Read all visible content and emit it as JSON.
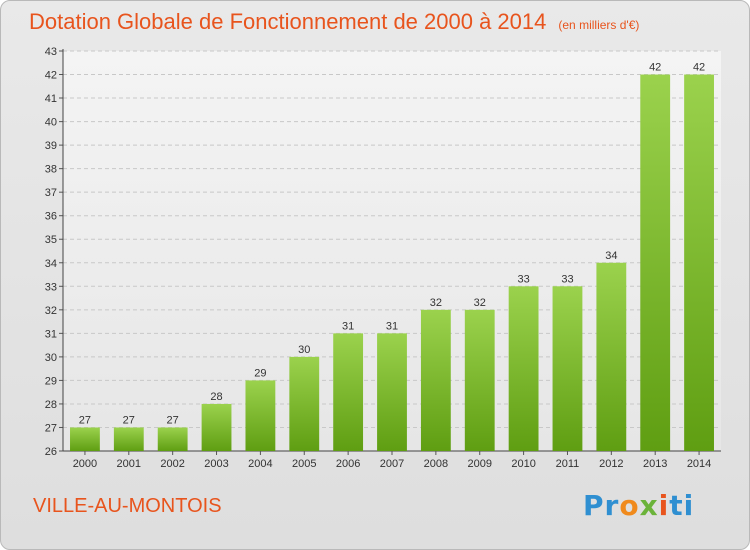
{
  "header": {
    "title": "Dotation Globale de Fonctionnement de 2000 à 2014",
    "unit": "(en milliers d'€)"
  },
  "footer": {
    "commune": "VILLE-AU-MONTOIS",
    "logo": [
      "P",
      "r",
      "o",
      "x",
      "i",
      "ti"
    ]
  },
  "colors": {
    "accent": "#e8541d",
    "bar_light": "#9bd24d",
    "bar_dark": "#5f9e12",
    "grid": "#c8c8c8"
  },
  "chart_data": {
    "type": "bar",
    "categories": [
      "2000",
      "2001",
      "2002",
      "2003",
      "2004",
      "2005",
      "2006",
      "2007",
      "2008",
      "2009",
      "2010",
      "2011",
      "2012",
      "2013",
      "2014"
    ],
    "values": [
      27,
      27,
      27,
      28,
      29,
      30,
      31,
      31,
      32,
      32,
      33,
      33,
      34,
      42,
      42
    ],
    "title": "Dotation Globale de Fonctionnement de 2000 à 2014",
    "subtitle": "(en milliers d'€)",
    "xlabel": "",
    "ylabel": "",
    "ylim": [
      26,
      43
    ],
    "yticks": [
      26,
      27,
      28,
      29,
      30,
      31,
      32,
      33,
      34,
      35,
      36,
      37,
      38,
      39,
      40,
      41,
      42,
      43
    ],
    "grid": true,
    "data_labels": true
  }
}
